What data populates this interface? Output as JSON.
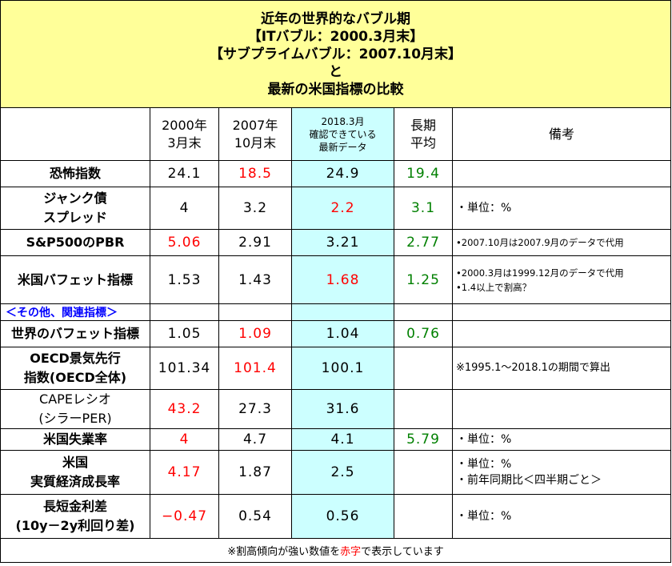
{
  "title": {
    "line1": "近年の世界的なバブル期",
    "line2": "【ITバブル：2000.3月末】",
    "line3": "【サブプライムバブル：2007.10月末】",
    "line4": "と",
    "line5": "最新の米国指標の比較"
  },
  "header": {
    "col2000": [
      "2000年",
      "3月末"
    ],
    "col2007": [
      "2007年",
      "10月末"
    ],
    "col2018": [
      "2018.3月",
      "確認できている",
      "最新データ"
    ],
    "colLong": [
      "長期",
      "平均"
    ],
    "colNote": "備考"
  },
  "rows": [
    {
      "label": [
        "恐怖指数"
      ],
      "v2000": "24.1",
      "v2007": "18.5",
      "v2018": "24.9",
      "vlong": "19.4",
      "note": []
    },
    {
      "label": [
        "ジャンク債",
        "スプレッド"
      ],
      "v2000": "4",
      "v2007": "3.2",
      "v2018": "2.2",
      "vlong": "3.1",
      "note": [
        "・単位：%"
      ]
    },
    {
      "label": [
        "S&P500のPBR"
      ],
      "v2000": "5.06",
      "v2007": "2.91",
      "v2018": "3.21",
      "vlong": "2.77",
      "note": [
        "•2007.10月は2007.9月のデータで代用"
      ]
    },
    {
      "label": [
        "米国バフェット指標"
      ],
      "v2000": "1.53",
      "v2007": "1.43",
      "v2018": "1.68",
      "vlong": "1.25",
      "note": [
        "•2000.3月は1999.12月のデータで代用",
        "•1.4以上で割高？"
      ]
    },
    {
      "label": [
        "世界のバフェット指標"
      ],
      "v2000": "1.05",
      "v2007": "1.09",
      "v2018": "1.04",
      "vlong": "0.76",
      "note": []
    },
    {
      "label": [
        "OECD景気先行",
        "指数(OECD全体)"
      ],
      "v2000": "101.34",
      "v2007": "101.4",
      "v2018": "100.1",
      "vlong": "",
      "note": [
        "※1995.1〜2018.1の期間で算出"
      ]
    },
    {
      "label": [
        "CAPEレシオ",
        "(シラーPER)"
      ],
      "v2000": "43.2",
      "v2007": "27.3",
      "v2018": "31.6",
      "vlong": "",
      "note": []
    },
    {
      "label": [
        "米国失業率"
      ],
      "v2000": "4",
      "v2007": "4.7",
      "v2018": "4.1",
      "vlong": "5.79",
      "note": [
        "・単位：%"
      ]
    },
    {
      "label": [
        "米国",
        "実質経済成長率"
      ],
      "v2000": "4.17",
      "v2007": "1.87",
      "v2018": "2.5",
      "vlong": "",
      "note": [
        "・単位：%",
        "・前年同期比＜四半期ごと＞"
      ]
    },
    {
      "label": [
        "長短金利差",
        "(10y－2y利回り差)"
      ],
      "v2000": "−0.47",
      "v2007": "0.54",
      "v2018": "0.56",
      "vlong": "",
      "note": [
        "・単位：%"
      ]
    }
  ],
  "subheader": "＜その他、関連指標＞",
  "footer": {
    "prefix": "※割高傾向が強い数値を",
    "highlight": "赤字",
    "suffix": "で表示しています"
  },
  "colors": {
    "title_bg": "#ffff99",
    "latest_col_bg": "#ccffff",
    "overvalued": "#ff0000",
    "long_avg": "#008000",
    "subheader": "#0000ff"
  }
}
